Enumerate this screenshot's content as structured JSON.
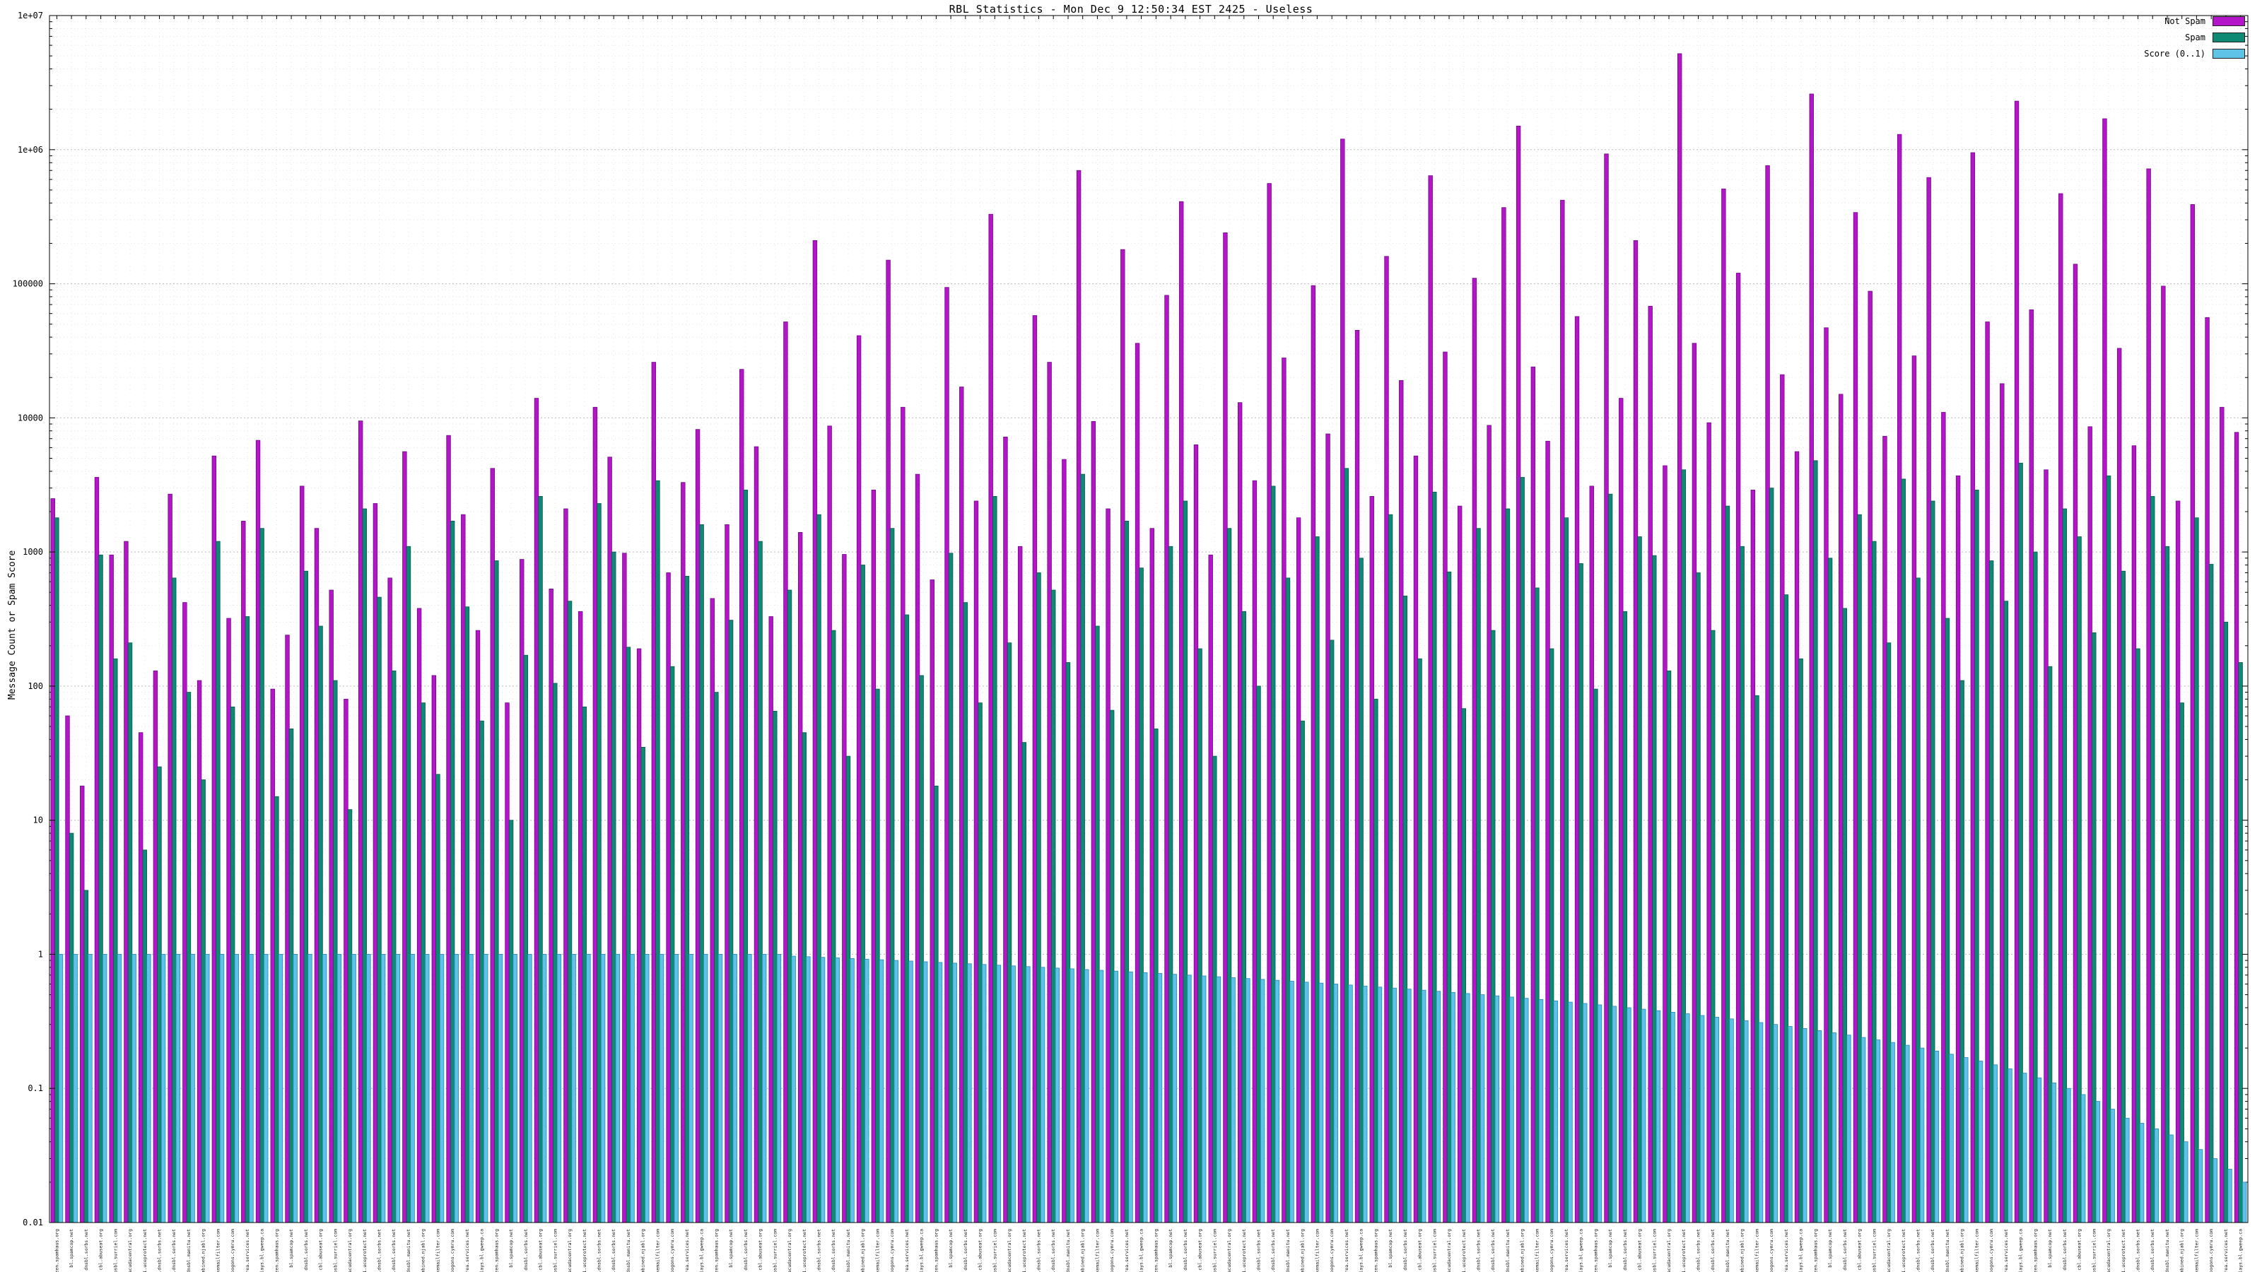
{
  "chart_data": {
    "type": "bar",
    "title": "RBL Statistics - Mon Dec  9 12:50:34 EST 2425 - Useless",
    "ylabel": "Message Count or Spam Score",
    "xlabel": "",
    "yscale": "log",
    "ylim": [
      0.01,
      10000000
    ],
    "yticks": [
      "0.01",
      "0.1",
      "1",
      "10",
      "100",
      "1000",
      "10000",
      "100000",
      "1e+06",
      "1e+07"
    ],
    "grid": true,
    "legend_position": "top-right",
    "categories": [
      "zen.spamhaus.org",
      "bl.spamcop.net",
      "dnsbl.sorbs.net",
      "cbl.abuseat.org",
      "psbl.surriel.com",
      "b.barracudacentral.org",
      "dnsbl-1.uceprotect.net",
      "spam.dnsbl.sorbs.net",
      "dul.dnsbl.sorbs.net",
      "ix.dnsbl.manitu.net",
      "combined.njabl.org",
      "hostkarma.junkemailfilter.com",
      "bogons.cymru.com",
      "korea.services.net",
      "relays.bl.gweep.ca",
      "zen.spamhaus.org",
      "bl.spamcop.net",
      "dnsbl.sorbs.net",
      "cbl.abuseat.org",
      "psbl.surriel.com",
      "b.barracudacentral.org",
      "dnsbl-1.uceprotect.net",
      "spam.dnsbl.sorbs.net",
      "dul.dnsbl.sorbs.net",
      "ix.dnsbl.manitu.net",
      "combined.njabl.org",
      "hostkarma.junkemailfilter.com",
      "bogons.cymru.com",
      "korea.services.net",
      "relays.bl.gweep.ca",
      "zen.spamhaus.org",
      "bl.spamcop.net",
      "dnsbl.sorbs.net",
      "cbl.abuseat.org",
      "psbl.surriel.com",
      "b.barracudacentral.org",
      "dnsbl-1.uceprotect.net",
      "spam.dnsbl.sorbs.net",
      "dul.dnsbl.sorbs.net",
      "ix.dnsbl.manitu.net",
      "combined.njabl.org",
      "hostkarma.junkemailfilter.com",
      "bogons.cymru.com",
      "korea.services.net",
      "relays.bl.gweep.ca",
      "zen.spamhaus.org",
      "bl.spamcop.net",
      "dnsbl.sorbs.net",
      "cbl.abuseat.org",
      "psbl.surriel.com",
      "b.barracudacentral.org",
      "dnsbl-1.uceprotect.net",
      "spam.dnsbl.sorbs.net",
      "dul.dnsbl.sorbs.net",
      "ix.dnsbl.manitu.net",
      "combined.njabl.org",
      "hostkarma.junkemailfilter.com",
      "bogons.cymru.com",
      "korea.services.net",
      "relays.bl.gweep.ca",
      "zen.spamhaus.org",
      "bl.spamcop.net",
      "dnsbl.sorbs.net",
      "cbl.abuseat.org",
      "psbl.surriel.com",
      "b.barracudacentral.org",
      "dnsbl-1.uceprotect.net",
      "spam.dnsbl.sorbs.net",
      "dul.dnsbl.sorbs.net",
      "ix.dnsbl.manitu.net",
      "combined.njabl.org",
      "hostkarma.junkemailfilter.com",
      "bogons.cymru.com",
      "korea.services.net",
      "relays.bl.gweep.ca",
      "zen.spamhaus.org",
      "bl.spamcop.net",
      "dnsbl.sorbs.net",
      "cbl.abuseat.org",
      "psbl.surriel.com",
      "b.barracudacentral.org",
      "dnsbl-1.uceprotect.net",
      "spam.dnsbl.sorbs.net",
      "dul.dnsbl.sorbs.net",
      "ix.dnsbl.manitu.net",
      "combined.njabl.org",
      "hostkarma.junkemailfilter.com",
      "bogons.cymru.com",
      "korea.services.net",
      "relays.bl.gweep.ca",
      "zen.spamhaus.org",
      "bl.spamcop.net",
      "dnsbl.sorbs.net",
      "cbl.abuseat.org",
      "psbl.surriel.com",
      "b.barracudacentral.org",
      "dnsbl-1.uceprotect.net",
      "spam.dnsbl.sorbs.net",
      "dul.dnsbl.sorbs.net",
      "ix.dnsbl.manitu.net",
      "combined.njabl.org",
      "hostkarma.junkemailfilter.com",
      "bogons.cymru.com",
      "korea.services.net",
      "relays.bl.gweep.ca",
      "zen.spamhaus.org",
      "bl.spamcop.net",
      "dnsbl.sorbs.net",
      "cbl.abuseat.org",
      "psbl.surriel.com",
      "b.barracudacentral.org",
      "dnsbl-1.uceprotect.net",
      "spam.dnsbl.sorbs.net",
      "dul.dnsbl.sorbs.net",
      "ix.dnsbl.manitu.net",
      "combined.njabl.org",
      "hostkarma.junkemailfilter.com",
      "bogons.cymru.com",
      "korea.services.net",
      "relays.bl.gweep.ca",
      "zen.spamhaus.org",
      "bl.spamcop.net",
      "dnsbl.sorbs.net",
      "cbl.abuseat.org",
      "psbl.surriel.com",
      "b.barracudacentral.org",
      "dnsbl-1.uceprotect.net",
      "spam.dnsbl.sorbs.net",
      "dul.dnsbl.sorbs.net",
      "ix.dnsbl.manitu.net",
      "combined.njabl.org",
      "hostkarma.junkemailfilter.com",
      "bogons.cymru.com",
      "korea.services.net",
      "relays.bl.gweep.ca",
      "zen.spamhaus.org",
      "bl.spamcop.net",
      "dnsbl.sorbs.net",
      "cbl.abuseat.org",
      "psbl.surriel.com",
      "b.barracudacentral.org",
      "dnsbl-1.uceprotect.net",
      "spam.dnsbl.sorbs.net",
      "dul.dnsbl.sorbs.net",
      "ix.dnsbl.manitu.net",
      "combined.njabl.org",
      "hostkarma.junkemailfilter.com",
      "bogons.cymru.com",
      "korea.services.net",
      "relays.bl.gweep.ca"
    ],
    "series": [
      {
        "name": "Not Spam",
        "color": "#b515c8",
        "stroke": "#6e0b85",
        "values": [
          2500,
          60,
          18,
          3600,
          950,
          1200,
          45,
          130,
          2700,
          420,
          110,
          5200,
          320,
          1700,
          6800,
          95,
          240,
          3100,
          1500,
          520,
          80,
          9500,
          2300,
          640,
          5600,
          380,
          120,
          7400,
          1900,
          260,
          4200,
          75,
          880,
          14000,
          530,
          2100,
          360,
          12000,
          5100,
          980,
          190,
          26000,
          700,
          3300,
          8200,
          450,
          1600,
          23000,
          6100,
          330,
          52000,
          1400,
          210000,
          8700,
          960,
          41000,
          2900,
          150000,
          12000,
          3800,
          620,
          94000,
          17000,
          2400,
          330000,
          7200,
          1100,
          58000,
          26000,
          4900,
          700000,
          9400,
          2100,
          180000,
          36000,
          1500,
          82000,
          410000,
          6300,
          950,
          240000,
          13000,
          3400,
          560000,
          28000,
          1800,
          97000,
          7600,
          1200000,
          45000,
          2600,
          160000,
          19000,
          5200,
          640000,
          31000,
          2200,
          110000,
          8800,
          370000,
          1500000,
          24000,
          6700,
          420000,
          57000,
          3100,
          930000,
          14000,
          210000,
          68000,
          4400,
          5200000,
          36000,
          9200,
          510000,
          120000,
          2900,
          760000,
          21000,
          5600,
          2600000,
          47000,
          15000,
          340000,
          88000,
          7300,
          1300000,
          29000,
          620000,
          11000,
          3700,
          950000,
          52000,
          18000,
          2300000,
          64000,
          4100,
          470000,
          140000,
          8600,
          1700000,
          33000,
          6200,
          720000,
          96000,
          2400,
          390000,
          56000,
          12000,
          7800
        ]
      },
      {
        "name": "Spam",
        "color": "#0e8a74",
        "stroke": "#06594b",
        "values": [
          1800,
          8,
          3,
          950,
          160,
          210,
          6,
          25,
          640,
          90,
          20,
          1200,
          70,
          330,
          1500,
          15,
          48,
          720,
          280,
          110,
          12,
          2100,
          460,
          130,
          1100,
          75,
          22,
          1700,
          390,
          55,
          860,
          10,
          170,
          2600,
          105,
          430,
          70,
          2300,
          1000,
          195,
          35,
          3400,
          140,
          660,
          1600,
          90,
          310,
          2900,
          1200,
          65,
          520,
          45,
          1900,
          260,
          30,
          800,
          95,
          1500,
          340,
          120,
          18,
          980,
          420,
          75,
          2600,
          210,
          38,
          700,
          520,
          150,
          3800,
          280,
          66,
          1700,
          760,
          48,
          1100,
          2400,
          190,
          30,
          1500,
          360,
          100,
          3100,
          640,
          55,
          1300,
          220,
          4200,
          900,
          80,
          1900,
          470,
          160,
          2800,
          710,
          68,
          1500,
          260,
          2100,
          3600,
          540,
          190,
          1800,
          820,
          95,
          2700,
          360,
          1300,
          940,
          130,
          4100,
          700,
          260,
          2200,
          1100,
          85,
          3000,
          480,
          160,
          4800,
          900,
          380,
          1900,
          1200,
          210,
          3500,
          640,
          2400,
          320,
          110,
          2900,
          860,
          430,
          4600,
          1000,
          140,
          2100,
          1300,
          250,
          3700,
          720,
          190,
          2600,
          1100,
          75,
          1800,
          810,
          300,
          150
        ]
      },
      {
        "name": "Score (0..1)",
        "color": "#5fc3e8",
        "stroke": "#2c84b5",
        "values": [
          1,
          1,
          1,
          1,
          1,
          1,
          1,
          1,
          1,
          1,
          1,
          1,
          1,
          1,
          1,
          1,
          1,
          1,
          1,
          1,
          1,
          1,
          1,
          1,
          1,
          1,
          1,
          1,
          1,
          1,
          1,
          1,
          1,
          1,
          1,
          1,
          1,
          1,
          1,
          1,
          1,
          1,
          1,
          1,
          1,
          1,
          1,
          1,
          1,
          1,
          0.97,
          0.96,
          0.95,
          0.94,
          0.93,
          0.92,
          0.91,
          0.9,
          0.89,
          0.88,
          0.87,
          0.86,
          0.85,
          0.84,
          0.83,
          0.82,
          0.81,
          0.8,
          0.79,
          0.78,
          0.77,
          0.76,
          0.75,
          0.74,
          0.73,
          0.72,
          0.71,
          0.7,
          0.69,
          0.68,
          0.67,
          0.66,
          0.65,
          0.64,
          0.63,
          0.62,
          0.61,
          0.6,
          0.59,
          0.58,
          0.57,
          0.56,
          0.55,
          0.54,
          0.53,
          0.52,
          0.51,
          0.5,
          0.49,
          0.48,
          0.47,
          0.46,
          0.45,
          0.44,
          0.43,
          0.42,
          0.41,
          0.4,
          0.39,
          0.38,
          0.37,
          0.36,
          0.35,
          0.34,
          0.33,
          0.32,
          0.31,
          0.3,
          0.29,
          0.28,
          0.27,
          0.26,
          0.25,
          0.24,
          0.23,
          0.22,
          0.21,
          0.2,
          0.19,
          0.18,
          0.17,
          0.16,
          0.15,
          0.14,
          0.13,
          0.12,
          0.11,
          0.1,
          0.09,
          0.08,
          0.07,
          0.06,
          0.055,
          0.05,
          0.045,
          0.04,
          0.035,
          0.03,
          0.025,
          0.02
        ]
      }
    ]
  }
}
